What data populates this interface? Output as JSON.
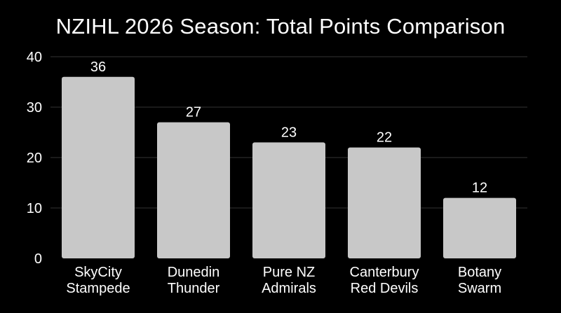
{
  "chart_data": {
    "type": "bar",
    "title": "NZIHL 2026 Season: Total Points Comparison",
    "xlabel": "",
    "ylabel": "",
    "categories": [
      [
        "SkyCity",
        "Stampede"
      ],
      [
        "Dunedin",
        "Thunder"
      ],
      [
        "Pure NZ",
        "Admirals"
      ],
      [
        "Canterbury",
        "Red Devils"
      ],
      [
        "Botany",
        "Swarm"
      ]
    ],
    "values": [
      36,
      27,
      23,
      22,
      12
    ],
    "data_labels": [
      "36",
      "27",
      "23",
      "22",
      "12"
    ],
    "ylim": [
      0,
      40
    ],
    "yticks": [
      0,
      10,
      20,
      30,
      40
    ],
    "grid": true,
    "colors": {
      "background": "#000000",
      "bar": "#c8c8c8",
      "grid": "#333333",
      "text": "#ffffff"
    }
  }
}
